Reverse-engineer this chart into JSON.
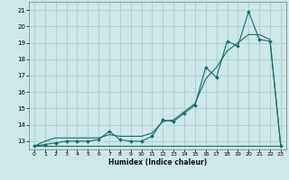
{
  "title": "",
  "xlabel": "Humidex (Indice chaleur)",
  "ylabel": "",
  "bg_color": "#cce8e8",
  "grid_color": "#aacece",
  "line_color": "#1a6b6b",
  "xlim": [
    -0.5,
    23.5
  ],
  "ylim": [
    12.5,
    21.5
  ],
  "xticks": [
    0,
    1,
    2,
    3,
    4,
    5,
    6,
    7,
    8,
    9,
    10,
    11,
    12,
    13,
    14,
    15,
    16,
    17,
    18,
    19,
    20,
    21,
    22,
    23
  ],
  "yticks": [
    13,
    14,
    15,
    16,
    17,
    18,
    19,
    20,
    21
  ],
  "hours": [
    0,
    1,
    2,
    3,
    4,
    5,
    6,
    7,
    8,
    9,
    10,
    11,
    12,
    13,
    14,
    15,
    16,
    17,
    18,
    19,
    20,
    21,
    22,
    23
  ],
  "humidex": [
    12.7,
    12.8,
    12.9,
    13.0,
    13.0,
    13.0,
    13.1,
    13.6,
    13.1,
    13.0,
    13.0,
    13.3,
    14.3,
    14.2,
    14.7,
    15.2,
    17.5,
    16.9,
    19.1,
    18.8,
    20.9,
    19.2,
    19.1,
    12.7
  ],
  "min_line": [
    12.7,
    12.7,
    12.7,
    12.7,
    12.7,
    12.7,
    12.7,
    12.7,
    12.7,
    12.7,
    12.7,
    12.7,
    12.7,
    12.7,
    12.7,
    12.7,
    12.7,
    12.7,
    12.7,
    12.7,
    12.7,
    12.7,
    12.7,
    12.7
  ],
  "trend_line": [
    12.7,
    13.0,
    13.2,
    13.2,
    13.2,
    13.2,
    13.2,
    13.4,
    13.3,
    13.3,
    13.3,
    13.5,
    14.2,
    14.3,
    14.8,
    15.3,
    16.8,
    17.5,
    18.5,
    19.0,
    19.5,
    19.5,
    19.2,
    12.7
  ]
}
